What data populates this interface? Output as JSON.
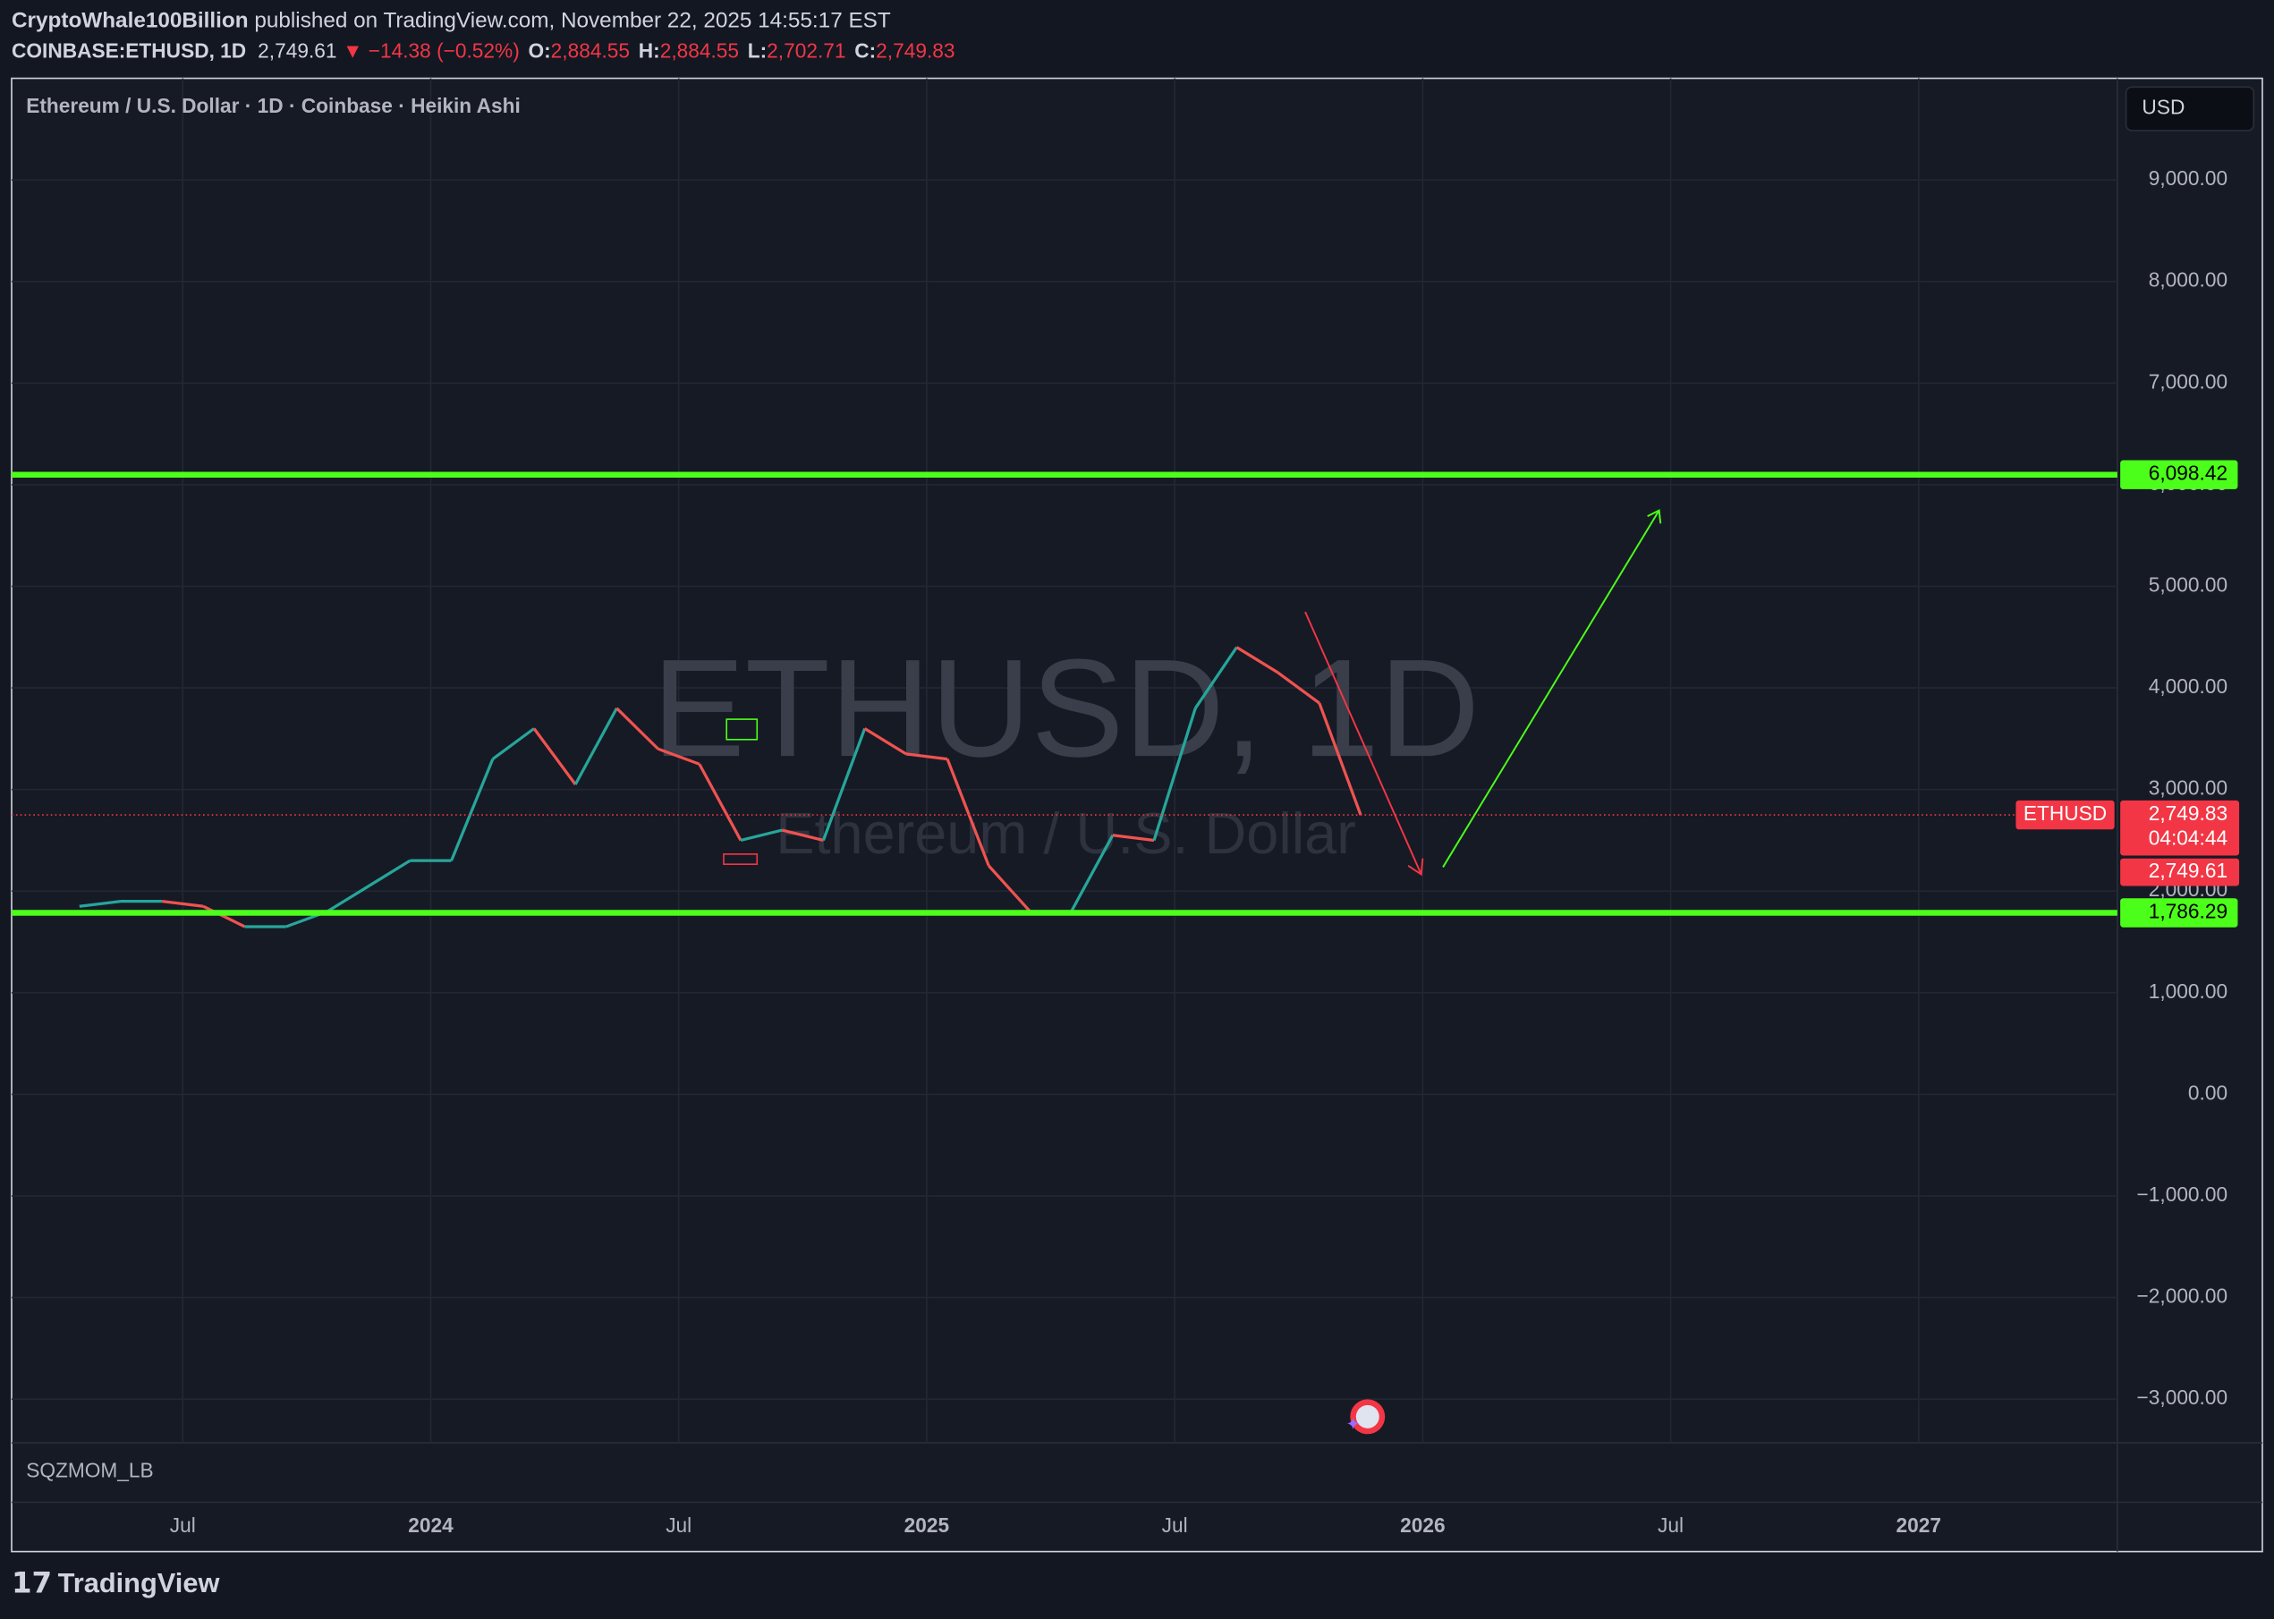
{
  "header": {
    "author": "CryptoWhale100Billion",
    "published": " published on TradingView.com, November 22, 2025 14:55:17 EST",
    "symbol": "COINBASE:ETHUSD, 1D",
    "last": "2,749.61",
    "change": "▼ −14.38 (−0.52%)",
    "ohlc": [
      {
        "key": "O:",
        "value": "2,884.55"
      },
      {
        "key": "H:",
        "value": "2,884.55"
      },
      {
        "key": "L:",
        "value": "2,702.71"
      },
      {
        "key": "C:",
        "value": "2,749.83"
      }
    ]
  },
  "footer": {
    "brand": "TradingView"
  },
  "toolbar": {
    "currency": "USD"
  },
  "indicator": {
    "name": "SQZMOM_LB"
  },
  "chart_data": {
    "type": "line",
    "legend": "Ethereum / U.S. Dollar · 1D · Coinbase · Heikin Ashi",
    "watermark": "ETHUSD, 1D",
    "watermark_subtitle": "Ethereum / U.S. Dollar",
    "x": [
      "2023-04",
      "2023-05",
      "2023-06",
      "2023-07",
      "2023-08",
      "2023-09",
      "2023-10",
      "2023-11",
      "2023-12",
      "2024-01",
      "2024-02",
      "2024-03",
      "2024-04",
      "2024-05",
      "2024-06",
      "2024-07",
      "2024-08",
      "2024-09",
      "2024-10",
      "2024-11",
      "2024-12",
      "2025-01",
      "2025-02",
      "2025-03",
      "2025-04",
      "2025-05",
      "2025-06",
      "2025-07",
      "2025-08",
      "2025-09",
      "2025-10",
      "2025-11"
    ],
    "series": [
      {
        "name": "ETHUSD",
        "color": "#26a69a",
        "down_color": "#ef5350",
        "values": [
          1850,
          1900,
          1900,
          1850,
          1650,
          1650,
          1800,
          2050,
          2300,
          2300,
          3300,
          3600,
          3050,
          3800,
          3400,
          3250,
          2500,
          2600,
          2500,
          3600,
          3350,
          3300,
          2250,
          1800,
          1800,
          2550,
          2500,
          3800,
          4400,
          4150,
          3850,
          2750
        ]
      }
    ],
    "ylim": [
      -3430,
      10000
    ],
    "yticks": [
      {
        "value": 9000,
        "label": "9,000.00"
      },
      {
        "value": 8000,
        "label": "8,000.00"
      },
      {
        "value": 7000,
        "label": "7,000.00"
      },
      {
        "value": 6000,
        "label": "6,000.00"
      },
      {
        "value": 5000,
        "label": "5,000.00"
      },
      {
        "value": 4000,
        "label": "4,000.00"
      },
      {
        "value": 3000,
        "label": "3,000.00"
      },
      {
        "value": 2000,
        "label": "2,000.00"
      },
      {
        "value": 1000,
        "label": "1,000.00"
      },
      {
        "value": 0,
        "label": "0.00"
      },
      {
        "value": -1000,
        "label": "−1,000.00"
      },
      {
        "value": -2000,
        "label": "−2,000.00"
      },
      {
        "value": -3000,
        "label": "−3,000.00"
      }
    ],
    "xticks": [
      {
        "value": "2023-07",
        "label": "Jul"
      },
      {
        "value": "2024-01",
        "label": "2024"
      },
      {
        "value": "2024-07",
        "label": "Jul"
      },
      {
        "value": "2025-01",
        "label": "2025"
      },
      {
        "value": "2025-07",
        "label": "Jul"
      },
      {
        "value": "2026-01",
        "label": "2026"
      },
      {
        "value": "2026-07",
        "label": "Jul"
      },
      {
        "value": "2027-01",
        "label": "2027"
      }
    ],
    "grid": true,
    "levels": [
      {
        "value": 6098.42,
        "label": "6,098.42",
        "color": "#4cff1a"
      },
      {
        "value": 1786.29,
        "label": "1,786.29",
        "color": "#4cff1a"
      }
    ],
    "last_price": {
      "name": "ETHUSD",
      "value": 2749.83,
      "label": "2,749.83",
      "countdown": "04:04:44",
      "color": "#f23645"
    },
    "bid_price": {
      "value": 2749.61,
      "label": "2,749.61",
      "color": "#f23645"
    }
  }
}
